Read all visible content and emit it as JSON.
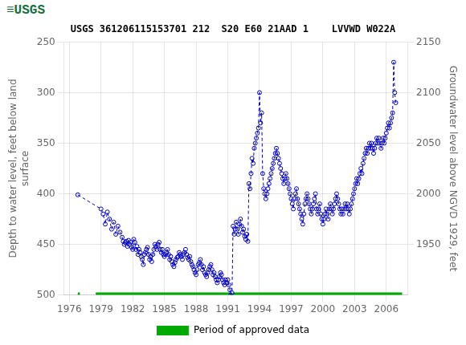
{
  "chart_data": {
    "type": "line",
    "title": "USGS 361206115153701 212  S20 E60 21AAD 1    LVVWD W022A",
    "annotations": [
      {
        "text": "≡USGS",
        "color": "#1a6e3c"
      }
    ],
    "xlabel": "",
    "ylabel": "Depth to water level, feet below land\nsurface",
    "y2label": "Groundwater level above NGVD 1929, feet",
    "xlim": [
      1975.5,
      2008.0
    ],
    "xticks": [
      1976,
      1979,
      1982,
      1985,
      1988,
      1991,
      1994,
      1997,
      2000,
      2003,
      2006
    ],
    "ylim": [
      500,
      250
    ],
    "yticks": [
      250,
      300,
      350,
      400,
      450,
      500
    ],
    "y2lim": [
      1900,
      2150
    ],
    "y2ticks": [
      1950,
      2000,
      2050,
      2100,
      2150
    ],
    "grid": true,
    "legend": "bottom",
    "x": [
      1976.8,
      1979.0,
      1979.2,
      1979.4,
      1979.6,
      1979.8,
      1980.0,
      1980.2,
      1980.4,
      1980.6,
      1980.8,
      1981.0,
      1981.1,
      1981.2,
      1981.3,
      1981.4,
      1981.5,
      1981.6,
      1981.7,
      1981.8,
      1981.9,
      1982.0,
      1982.1,
      1982.2,
      1982.3,
      1982.4,
      1982.5,
      1982.6,
      1982.7,
      1982.8,
      1982.9,
      1983.0,
      1983.1,
      1983.2,
      1983.3,
      1983.4,
      1983.5,
      1983.6,
      1983.7,
      1983.8,
      1983.9,
      1984.0,
      1984.1,
      1984.2,
      1984.3,
      1984.4,
      1984.5,
      1984.6,
      1984.7,
      1984.8,
      1984.9,
      1985.0,
      1985.1,
      1985.2,
      1985.3,
      1985.4,
      1985.5,
      1985.6,
      1985.7,
      1985.8,
      1985.9,
      1986.0,
      1986.1,
      1986.2,
      1986.3,
      1986.4,
      1986.5,
      1986.6,
      1986.7,
      1986.8,
      1986.9,
      1987.0,
      1987.1,
      1987.2,
      1987.3,
      1987.4,
      1987.5,
      1987.6,
      1987.7,
      1987.8,
      1987.9,
      1988.0,
      1988.1,
      1988.2,
      1988.3,
      1988.4,
      1988.5,
      1988.6,
      1988.7,
      1988.8,
      1988.9,
      1989.0,
      1989.1,
      1989.2,
      1989.3,
      1989.4,
      1989.5,
      1989.6,
      1989.7,
      1989.8,
      1989.9,
      1990.0,
      1990.1,
      1990.2,
      1990.3,
      1990.4,
      1990.5,
      1990.6,
      1990.7,
      1990.8,
      1990.9,
      1991.0,
      1991.1,
      1991.2,
      1991.3,
      1991.4,
      1991.5,
      1991.6,
      1991.7,
      1991.8,
      1991.9,
      1992.0,
      1992.1,
      1992.2,
      1992.3,
      1992.4,
      1992.5,
      1992.6,
      1992.7,
      1992.8,
      1992.9,
      1993.0,
      1993.1,
      1993.2,
      1993.3,
      1993.4,
      1993.5,
      1993.6,
      1993.7,
      1993.8,
      1993.9,
      1994.0,
      1994.1,
      1994.2,
      1994.3,
      1994.4,
      1994.5,
      1994.6,
      1994.7,
      1994.8,
      1994.9,
      1995.0,
      1995.1,
      1995.2,
      1995.3,
      1995.4,
      1995.5,
      1995.6,
      1995.7,
      1995.8,
      1995.9,
      1996.0,
      1996.1,
      1996.2,
      1996.3,
      1996.4,
      1996.5,
      1996.6,
      1996.7,
      1996.8,
      1996.9,
      1997.0,
      1997.1,
      1997.2,
      1997.3,
      1997.4,
      1997.5,
      1997.6,
      1997.7,
      1997.8,
      1997.9,
      1998.0,
      1998.1,
      1998.2,
      1998.3,
      1998.4,
      1998.5,
      1998.6,
      1998.7,
      1998.8,
      1998.9,
      1999.0,
      1999.1,
      1999.2,
      1999.3,
      1999.4,
      1999.5,
      1999.6,
      1999.7,
      1999.8,
      1999.9,
      2000.0,
      2000.1,
      2000.2,
      2000.3,
      2000.4,
      2000.5,
      2000.6,
      2000.7,
      2000.8,
      2000.9,
      2001.0,
      2001.1,
      2001.2,
      2001.3,
      2001.4,
      2001.5,
      2001.6,
      2001.7,
      2001.8,
      2001.9,
      2002.0,
      2002.1,
      2002.2,
      2002.3,
      2002.4,
      2002.5,
      2002.6,
      2002.7,
      2002.8,
      2002.9,
      2003.0,
      2003.1,
      2003.2,
      2003.3,
      2003.4,
      2003.5,
      2003.6,
      2003.7,
      2003.8,
      2003.9,
      2004.0,
      2004.1,
      2004.2,
      2004.3,
      2004.4,
      2004.5,
      2004.6,
      2004.7,
      2004.8,
      2004.9,
      2005.0,
      2005.1,
      2005.2,
      2005.3,
      2005.4,
      2005.5,
      2005.6,
      2005.7,
      2005.8,
      2005.9,
      2006.0,
      2006.1,
      2006.2,
      2006.3,
      2006.4,
      2006.5,
      2006.6,
      2006.7,
      2006.8,
      2006.9
    ],
    "series": [
      {
        "color": "#0000cc",
        "marker": "circle",
        "line_style": "dashed",
        "values": [
          401,
          415,
          420,
          430,
          418,
          425,
          435,
          428,
          440,
          432,
          438,
          443,
          447,
          450,
          448,
          447,
          452,
          446,
          450,
          448,
          453,
          455,
          445,
          448,
          455,
          452,
          460,
          455,
          458,
          462,
          465,
          470,
          460,
          458,
          455,
          453,
          460,
          465,
          462,
          467,
          460,
          455,
          450,
          452,
          455,
          450,
          448,
          455,
          458,
          455,
          460,
          462,
          460,
          458,
          455,
          460,
          465,
          462,
          467,
          470,
          472,
          468,
          465,
          463,
          462,
          458,
          460,
          462,
          465,
          460,
          458,
          455,
          460,
          463,
          465,
          462,
          467,
          470,
          472,
          475,
          478,
          480,
          475,
          470,
          468,
          465,
          470,
          475,
          472,
          478,
          480,
          482,
          478,
          475,
          472,
          470,
          475,
          480,
          478,
          482,
          485,
          488,
          485,
          482,
          478,
          480,
          485,
          488,
          490,
          485,
          488,
          485,
          490,
          495,
          500,
          498,
          432,
          440,
          435,
          428,
          435,
          440,
          430,
          425,
          432,
          438,
          435,
          442,
          445,
          440,
          447,
          390,
          395,
          380,
          365,
          370,
          355,
          350,
          345,
          340,
          335,
          300,
          330,
          320,
          380,
          395,
          400,
          405,
          400,
          395,
          390,
          385,
          380,
          375,
          370,
          365,
          360,
          355,
          360,
          365,
          370,
          375,
          380,
          385,
          390,
          385,
          380,
          385,
          390,
          395,
          400,
          405,
          410,
          415,
          405,
          400,
          395,
          405,
          410,
          415,
          420,
          425,
          430,
          420,
          410,
          405,
          400,
          405,
          410,
          415,
          420,
          415,
          410,
          405,
          400,
          415,
          420,
          415,
          410,
          420,
          425,
          430,
          425,
          420,
          415,
          420,
          425,
          415,
          410,
          415,
          420,
          415,
          410,
          405,
          400,
          405,
          410,
          415,
          420,
          415,
          420,
          415,
          410,
          415,
          410,
          415,
          420,
          415,
          410,
          405,
          400,
          395,
          390,
          385,
          390,
          385,
          380,
          375,
          380,
          370,
          365,
          360,
          355,
          360,
          355,
          350,
          355,
          350,
          355,
          360,
          355,
          350,
          345,
          350,
          345,
          350,
          355,
          350,
          345,
          350,
          345,
          340,
          335,
          330,
          335,
          330,
          325,
          320,
          270,
          300,
          310
        ]
      }
    ],
    "approved_periods": {
      "name": "Period of approved data",
      "color": "#00aa00",
      "periods": [
        [
          1976.8,
          1977.0
        ],
        [
          1978.5,
          1991.4
        ],
        [
          1991.5,
          2007.5
        ]
      ]
    }
  }
}
